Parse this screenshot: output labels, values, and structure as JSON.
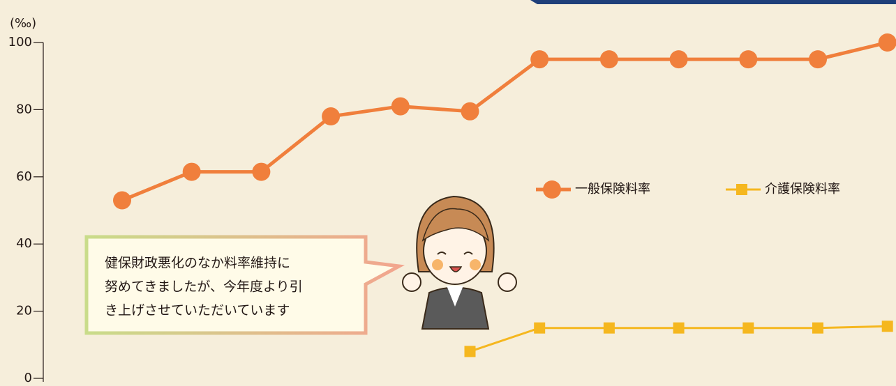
{
  "chart_data": {
    "type": "line",
    "y_label": "(‰)",
    "categories": [
      null,
      null,
      null,
      null,
      null,
      null,
      null,
      null,
      null,
      null,
      null,
      null
    ],
    "series": [
      {
        "name": "一般保険料率",
        "color": "#f07f3c",
        "marker": "circle",
        "values": [
          53,
          61.5,
          61.5,
          78,
          81,
          79.5,
          95,
          95,
          95,
          95,
          95,
          100
        ]
      },
      {
        "name": "介護保険料率",
        "color": "#f5b71f",
        "marker": "square",
        "values": [
          null,
          null,
          null,
          null,
          null,
          8,
          15,
          15,
          15,
          15,
          15,
          15.5
        ]
      }
    ],
    "ylim": [
      0,
      100
    ],
    "yticks": [
      0,
      20,
      40,
      60,
      80,
      100
    ],
    "annotation": [
      "健保財政悪化のなか料率維持に",
      "努めてきましたが、今年度より引",
      "き上げさせていただいています"
    ]
  }
}
